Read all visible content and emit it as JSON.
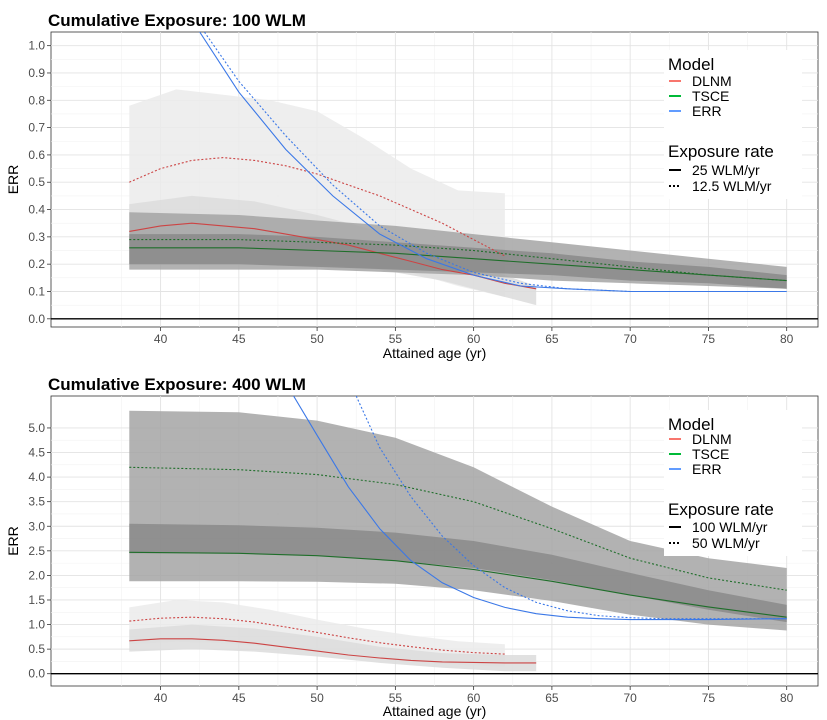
{
  "chart_data": [
    {
      "type": "line",
      "title": "Cumulative Exposure: 100 WLM",
      "xlabel": "Attained age (yr)",
      "ylabel": "ERR",
      "xlim": [
        33,
        82
      ],
      "ylim": [
        -0.03,
        1.05
      ],
      "x_ticks": [
        40,
        45,
        50,
        55,
        60,
        65,
        70,
        75,
        80
      ],
      "y_ticks": [
        0.0,
        0.1,
        0.2,
        0.3,
        0.4,
        0.5,
        0.6,
        0.7,
        0.8,
        0.9,
        1.0
      ],
      "x_tick_labels": [
        "40",
        "45",
        "50",
        "55",
        "60",
        "65",
        "70",
        "75",
        "80"
      ],
      "y_tick_labels": [
        "0.0",
        "0.1",
        "0.2",
        "0.3",
        "0.4",
        "0.5",
        "0.6",
        "0.7",
        "0.8",
        "0.9",
        "1.0"
      ],
      "grid": true,
      "legend_position": "right",
      "legend": {
        "model_title": "Model",
        "models": [
          {
            "label": "DLNM",
            "color": "#f8766d"
          },
          {
            "label": "TSCE",
            "color": "#00ba38"
          },
          {
            "label": "ERR",
            "color": "#619cff"
          }
        ],
        "rate_title": "Exposure rate",
        "rates": [
          {
            "label": "25 WLM/yr",
            "dash": "solid"
          },
          {
            "label": "12.5 WLM/yr",
            "dash": "dotted"
          }
        ]
      },
      "bands": [
        {
          "name": "DLNM 12.5 WLM/yr",
          "fill": "#ebebeb",
          "x": [
            38,
            41,
            44,
            47,
            50,
            53,
            56,
            59,
            62
          ],
          "lower": [
            0.22,
            0.22,
            0.23,
            0.23,
            0.22,
            0.2,
            0.17,
            0.12,
            0.08
          ],
          "upper": [
            0.78,
            0.84,
            0.82,
            0.8,
            0.76,
            0.66,
            0.55,
            0.47,
            0.46
          ]
        },
        {
          "name": "DLNM 25 WLM/yr",
          "fill": "#dcdcdc",
          "x": [
            38,
            42,
            46,
            50,
            54,
            58,
            62,
            64
          ],
          "lower": [
            0.2,
            0.2,
            0.2,
            0.2,
            0.18,
            0.14,
            0.08,
            0.05
          ],
          "upper": [
            0.42,
            0.45,
            0.43,
            0.38,
            0.32,
            0.24,
            0.16,
            0.12
          ]
        },
        {
          "name": "TSCE 12.5 WLM/yr",
          "fill": "#a5a5a5",
          "x": [
            38,
            45,
            50,
            55,
            60,
            65,
            70,
            75,
            80
          ],
          "lower": [
            0.18,
            0.18,
            0.18,
            0.17,
            0.16,
            0.14,
            0.13,
            0.12,
            0.11
          ],
          "upper": [
            0.39,
            0.38,
            0.36,
            0.34,
            0.31,
            0.28,
            0.25,
            0.22,
            0.19
          ]
        },
        {
          "name": "TSCE 25 WLM/yr",
          "fill": "#8a8a8a",
          "x": [
            38,
            45,
            50,
            55,
            60,
            65,
            70,
            75,
            80
          ],
          "lower": [
            0.2,
            0.2,
            0.19,
            0.18,
            0.17,
            0.16,
            0.14,
            0.13,
            0.11
          ],
          "upper": [
            0.31,
            0.31,
            0.3,
            0.28,
            0.26,
            0.24,
            0.21,
            0.19,
            0.16
          ]
        }
      ],
      "series": [
        {
          "model": "DLNM",
          "rate": "12.5 WLM/yr",
          "color": "#f8766d",
          "dash": "dotted",
          "x": [
            38,
            40,
            42,
            44,
            46,
            48,
            50,
            52,
            54,
            56,
            58,
            60,
            62
          ],
          "values": [
            0.5,
            0.55,
            0.58,
            0.59,
            0.58,
            0.56,
            0.53,
            0.49,
            0.45,
            0.4,
            0.35,
            0.29,
            0.23
          ]
        },
        {
          "model": "DLNM",
          "rate": "25 WLM/yr",
          "color": "#f8766d",
          "dash": "solid",
          "x": [
            38,
            40,
            42,
            44,
            46,
            48,
            50,
            52,
            54,
            56,
            58,
            60,
            62,
            64
          ],
          "values": [
            0.32,
            0.34,
            0.35,
            0.34,
            0.33,
            0.31,
            0.29,
            0.27,
            0.24,
            0.21,
            0.18,
            0.16,
            0.13,
            0.11
          ]
        },
        {
          "model": "TSCE",
          "rate": "12.5 WLM/yr",
          "color": "#00ba38",
          "dash": "dotted",
          "x": [
            38,
            45,
            50,
            55,
            60,
            65,
            70,
            75,
            80
          ],
          "values": [
            0.29,
            0.29,
            0.28,
            0.27,
            0.25,
            0.22,
            0.19,
            0.16,
            0.14
          ]
        },
        {
          "model": "TSCE",
          "rate": "25 WLM/yr",
          "color": "#00ba38",
          "dash": "solid",
          "x": [
            38,
            45,
            50,
            55,
            60,
            65,
            70,
            75,
            80
          ],
          "values": [
            0.26,
            0.26,
            0.25,
            0.24,
            0.22,
            0.2,
            0.18,
            0.16,
            0.14
          ]
        },
        {
          "model": "ERR",
          "rate": "12.5 WLM/yr",
          "color": "#619cff",
          "dash": "dotted",
          "x": [
            42.8,
            45,
            48,
            51,
            54,
            57,
            60,
            63,
            66,
            70,
            75,
            80
          ],
          "values": [
            1.05,
            0.87,
            0.67,
            0.49,
            0.34,
            0.24,
            0.17,
            0.13,
            0.11,
            0.1,
            0.1,
            0.1
          ]
        },
        {
          "model": "ERR",
          "rate": "25 WLM/yr",
          "color": "#619cff",
          "dash": "solid",
          "x": [
            42.5,
            45,
            48,
            51,
            54,
            57,
            60,
            63,
            66,
            70,
            75,
            80
          ],
          "values": [
            1.05,
            0.83,
            0.62,
            0.45,
            0.31,
            0.22,
            0.16,
            0.12,
            0.11,
            0.1,
            0.1,
            0.1
          ]
        }
      ]
    },
    {
      "type": "line",
      "title": "Cumulative Exposure: 400 WLM",
      "xlabel": "Attained age (yr)",
      "ylabel": "ERR",
      "xlim": [
        33,
        82
      ],
      "ylim": [
        -0.25,
        5.65
      ],
      "x_ticks": [
        40,
        45,
        50,
        55,
        60,
        65,
        70,
        75,
        80
      ],
      "y_ticks": [
        0.0,
        0.5,
        1.0,
        1.5,
        2.0,
        2.5,
        3.0,
        3.5,
        4.0,
        4.5,
        5.0
      ],
      "x_tick_labels": [
        "40",
        "45",
        "50",
        "55",
        "60",
        "65",
        "70",
        "75",
        "80"
      ],
      "y_tick_labels": [
        "0.0",
        "0.5",
        "1.0",
        "1.5",
        "2.0",
        "2.5",
        "3.0",
        "3.5",
        "4.0",
        "4.5",
        "5.0"
      ],
      "grid": true,
      "legend_position": "right",
      "legend": {
        "model_title": "Model",
        "models": [
          {
            "label": "DLNM",
            "color": "#f8766d"
          },
          {
            "label": "TSCE",
            "color": "#00ba38"
          },
          {
            "label": "ERR",
            "color": "#619cff"
          }
        ],
        "rate_title": "Exposure rate",
        "rates": [
          {
            "label": "100 WLM/yr",
            "dash": "solid"
          },
          {
            "label": "50 WLM/yr",
            "dash": "dotted"
          }
        ]
      },
      "bands": [
        {
          "name": "DLNM 50 WLM/yr",
          "fill": "#ebebeb",
          "x": [
            38,
            41,
            44,
            47,
            50,
            53,
            56,
            59,
            62
          ],
          "lower": [
            0.6,
            0.65,
            0.62,
            0.55,
            0.45,
            0.35,
            0.25,
            0.18,
            0.14
          ],
          "upper": [
            1.35,
            1.5,
            1.45,
            1.3,
            1.1,
            0.92,
            0.78,
            0.66,
            0.6
          ]
        },
        {
          "name": "DLNM 100 WLM/yr",
          "fill": "#dcdcdc",
          "x": [
            38,
            42,
            46,
            50,
            54,
            58,
            62,
            64
          ],
          "lower": [
            0.45,
            0.5,
            0.45,
            0.35,
            0.22,
            0.12,
            0.05,
            0.05
          ],
          "upper": [
            0.9,
            1.0,
            0.92,
            0.75,
            0.55,
            0.42,
            0.38,
            0.38
          ]
        },
        {
          "name": "TSCE 50 WLM/yr",
          "fill": "#a5a5a5",
          "x": [
            38,
            45,
            50,
            55,
            60,
            65,
            70,
            75,
            80
          ],
          "lower": [
            1.88,
            1.88,
            1.87,
            1.83,
            1.7,
            1.48,
            1.2,
            1.0,
            0.88
          ],
          "upper": [
            5.35,
            5.32,
            5.15,
            4.8,
            4.2,
            3.4,
            2.7,
            2.35,
            2.15
          ]
        },
        {
          "name": "TSCE 100 WLM/yr",
          "fill": "#8a8a8a",
          "x": [
            38,
            45,
            50,
            55,
            60,
            65,
            70,
            75,
            80
          ],
          "lower": [
            2.45,
            2.45,
            2.4,
            2.3,
            2.15,
            1.9,
            1.6,
            1.3,
            1.05
          ],
          "upper": [
            3.05,
            3.02,
            2.97,
            2.87,
            2.7,
            2.42,
            2.05,
            1.7,
            1.4
          ]
        }
      ],
      "series": [
        {
          "model": "DLNM",
          "rate": "50 WLM/yr",
          "color": "#f8766d",
          "dash": "dotted",
          "x": [
            38,
            40,
            42,
            44,
            46,
            48,
            50,
            52,
            54,
            56,
            58,
            60,
            62
          ],
          "values": [
            1.07,
            1.13,
            1.15,
            1.12,
            1.05,
            0.95,
            0.84,
            0.73,
            0.63,
            0.55,
            0.48,
            0.43,
            0.4
          ]
        },
        {
          "model": "DLNM",
          "rate": "100 WLM/yr",
          "color": "#f8766d",
          "dash": "solid",
          "x": [
            38,
            40,
            42,
            44,
            46,
            48,
            50,
            52,
            54,
            56,
            58,
            60,
            62,
            64
          ],
          "values": [
            0.67,
            0.71,
            0.71,
            0.68,
            0.62,
            0.54,
            0.46,
            0.38,
            0.32,
            0.27,
            0.24,
            0.23,
            0.22,
            0.22
          ]
        },
        {
          "model": "TSCE",
          "rate": "50 WLM/yr",
          "color": "#00ba38",
          "dash": "dotted",
          "x": [
            38,
            45,
            50,
            55,
            60,
            65,
            70,
            75,
            80
          ],
          "values": [
            4.2,
            4.15,
            4.05,
            3.85,
            3.5,
            2.95,
            2.35,
            1.95,
            1.7
          ]
        },
        {
          "model": "TSCE",
          "rate": "100 WLM/yr",
          "color": "#00ba38",
          "dash": "solid",
          "x": [
            38,
            45,
            50,
            55,
            60,
            65,
            70,
            75,
            80
          ],
          "values": [
            2.47,
            2.45,
            2.4,
            2.3,
            2.12,
            1.88,
            1.6,
            1.36,
            1.15
          ]
        },
        {
          "model": "ERR",
          "rate": "50 WLM/yr",
          "color": "#619cff",
          "dash": "dotted",
          "x": [
            52.5,
            54,
            56,
            58,
            60,
            62,
            64,
            66,
            68,
            70,
            72,
            75,
            80
          ],
          "values": [
            5.65,
            4.6,
            3.6,
            2.8,
            2.2,
            1.75,
            1.45,
            1.28,
            1.18,
            1.14,
            1.12,
            1.12,
            1.12
          ]
        },
        {
          "model": "ERR",
          "rate": "100 WLM/yr",
          "color": "#619cff",
          "dash": "solid",
          "x": [
            48.5,
            50,
            52,
            54,
            56,
            58,
            60,
            62,
            64,
            66,
            68,
            70,
            75,
            80
          ],
          "values": [
            5.65,
            4.85,
            3.8,
            2.95,
            2.3,
            1.85,
            1.55,
            1.35,
            1.22,
            1.15,
            1.12,
            1.1,
            1.1,
            1.12
          ]
        }
      ]
    }
  ]
}
